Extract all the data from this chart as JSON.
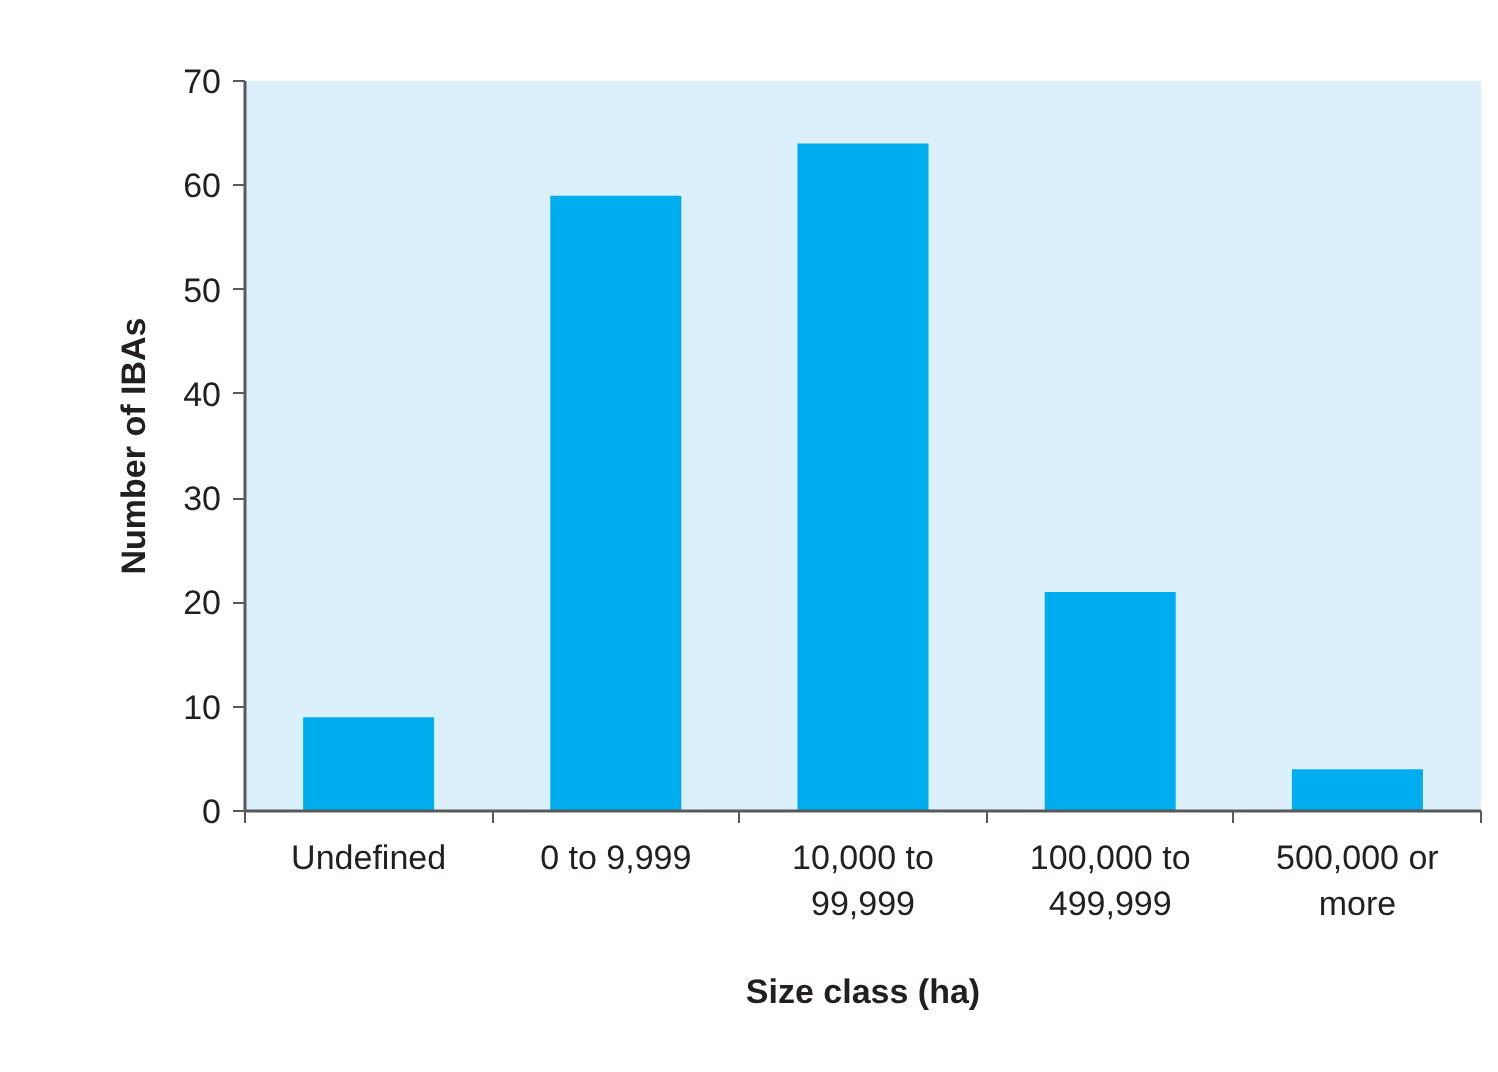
{
  "chart_data": {
    "type": "bar",
    "xlabel": "Size class (ha)",
    "ylabel": "Number of IBAs",
    "categories": [
      "Undefined",
      "0 to 9,999",
      "10,000 to 99,999",
      "100,000 to 499,999",
      "500,000 or more"
    ],
    "values": [
      9,
      59,
      64,
      21,
      4
    ],
    "color": "#00aeef",
    "ylim": [
      0,
      70
    ],
    "yticks": [
      0,
      10,
      20,
      30,
      40,
      50,
      60,
      70
    ],
    "grid": false
  }
}
